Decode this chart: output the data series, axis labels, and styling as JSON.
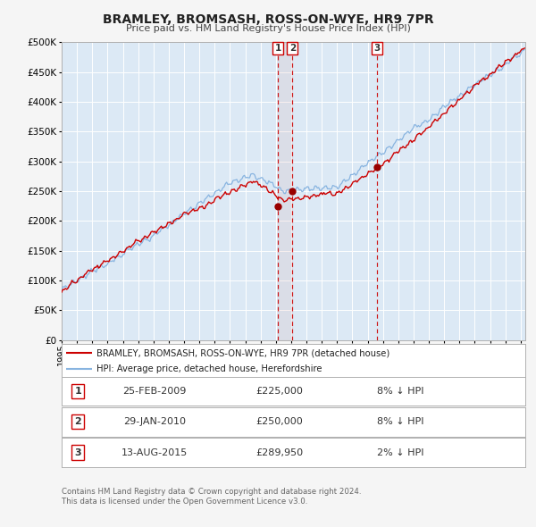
{
  "title": "BRAMLEY, BROMSASH, ROSS-ON-WYE, HR9 7PR",
  "subtitle": "Price paid vs. HM Land Registry's House Price Index (HPI)",
  "bg_color": "#dce9f5",
  "plot_bg_color": "#dce9f5",
  "hpi_color": "#88b4e0",
  "price_color": "#cc0000",
  "grid_color": "#ffffff",
  "ylim": [
    0,
    500000
  ],
  "yticks": [
    0,
    50000,
    100000,
    150000,
    200000,
    250000,
    300000,
    350000,
    400000,
    450000,
    500000
  ],
  "xlim_start": 1995.0,
  "xlim_end": 2025.3,
  "annotations": [
    {
      "num": 1,
      "date_label": "25-FEB-2009",
      "x": 2009.14,
      "price": 225000,
      "price_label": "£225,000",
      "pct": "8%",
      "dir": "↓"
    },
    {
      "num": 2,
      "date_label": "29-JAN-2010",
      "x": 2010.08,
      "price": 250000,
      "price_label": "£250,000",
      "pct": "8%",
      "dir": "↓"
    },
    {
      "num": 3,
      "date_label": "13-AUG-2015",
      "x": 2015.62,
      "price": 289950,
      "price_label": "£289,950",
      "pct": "2%",
      "dir": "↓"
    }
  ],
  "legend_label_red": "BRAMLEY, BROMSASH, ROSS-ON-WYE, HR9 7PR (detached house)",
  "legend_label_blue": "HPI: Average price, detached house, Herefordshire",
  "footer1": "Contains HM Land Registry data © Crown copyright and database right 2024.",
  "footer2": "This data is licensed under the Open Government Licence v3.0."
}
